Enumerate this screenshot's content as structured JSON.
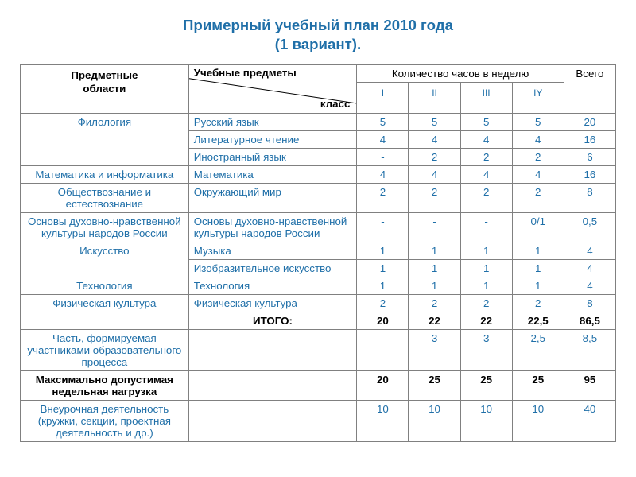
{
  "title_font_size_pt": 14,
  "cell_font_size_pt": 10,
  "roman_font_size_pt": 9,
  "title_color": "#1f6fa8",
  "header_color": "#000000",
  "data_color": "#1f6fa8",
  "title_line1": "Примерный учебный план 2010 года",
  "title_line2": "(1 вариант).",
  "headers": {
    "area_l1": "Предметные",
    "area_l2": "области",
    "subj": "Учебные предметы",
    "class": "класс",
    "hours": "Количество часов в неделю",
    "total": "Всего",
    "romans": [
      "I",
      "II",
      "III",
      "IY"
    ]
  },
  "rows": [
    {
      "area": "Филология",
      "area_rowspan": 3,
      "subject": "Русский язык",
      "vals": [
        "5",
        "5",
        "5",
        "5"
      ],
      "total": "20"
    },
    {
      "area": null,
      "area_rowspan": 0,
      "subject": "Литературное чтение",
      "vals": [
        "4",
        "4",
        "4",
        "4"
      ],
      "total": "16"
    },
    {
      "area": null,
      "area_rowspan": 0,
      "subject": "Иностранный язык",
      "vals": [
        "-",
        "2",
        "2",
        "2"
      ],
      "total": "6"
    },
    {
      "area": "Математика и информатика",
      "area_rowspan": 1,
      "subject": "Математика",
      "vals": [
        "4",
        "4",
        "4",
        "4"
      ],
      "total": "16"
    },
    {
      "area": "Обществознание и естествознание",
      "area_rowspan": 1,
      "subject": "Окружающий мир",
      "vals": [
        "2",
        "2",
        "2",
        "2"
      ],
      "total": "8"
    },
    {
      "area": "Основы духовно-нравственной культуры народов России",
      "area_rowspan": 1,
      "subject": "Основы духовно-нравственной культуры народов России",
      "vals": [
        "-",
        "-",
        "-",
        "0/1"
      ],
      "total": "0,5"
    },
    {
      "area": "Искусство",
      "area_rowspan": 2,
      "subject": "Музыка",
      "vals": [
        "1",
        "1",
        "1",
        "1"
      ],
      "total": "4"
    },
    {
      "area": null,
      "area_rowspan": 0,
      "subject": "Изобразительное искусство",
      "vals": [
        "1",
        "1",
        "1",
        "1"
      ],
      "total": "4"
    },
    {
      "area": "Технология",
      "area_rowspan": 1,
      "subject": "Технология",
      "vals": [
        "1",
        "1",
        "1",
        "1"
      ],
      "total": "4"
    },
    {
      "area": "Физическая культура",
      "area_rowspan": 1,
      "subject": "Физическая культура",
      "vals": [
        "2",
        "2",
        "2",
        "2"
      ],
      "total": "8"
    }
  ],
  "summary": {
    "label": "ИТОГО:",
    "vals": [
      "20",
      "22",
      "22",
      "22,5"
    ],
    "total": "86,5"
  },
  "extra": [
    {
      "area": "Часть, формируемая участниками образовательного процесса",
      "subject": "",
      "vals": [
        "-",
        "3",
        "3",
        "2,5"
      ],
      "total": "8,5",
      "bold": false
    },
    {
      "area": "Максимально допустимая недельная нагрузка",
      "subject": "",
      "vals": [
        "20",
        "25",
        "25",
        "25"
      ],
      "total": "95",
      "bold": true
    },
    {
      "area": "Внеурочная деятельность (кружки, секции, проектная деятельность и др.)",
      "subject": "",
      "vals": [
        "10",
        "10",
        "10",
        "10"
      ],
      "total": "40",
      "bold": false
    }
  ]
}
